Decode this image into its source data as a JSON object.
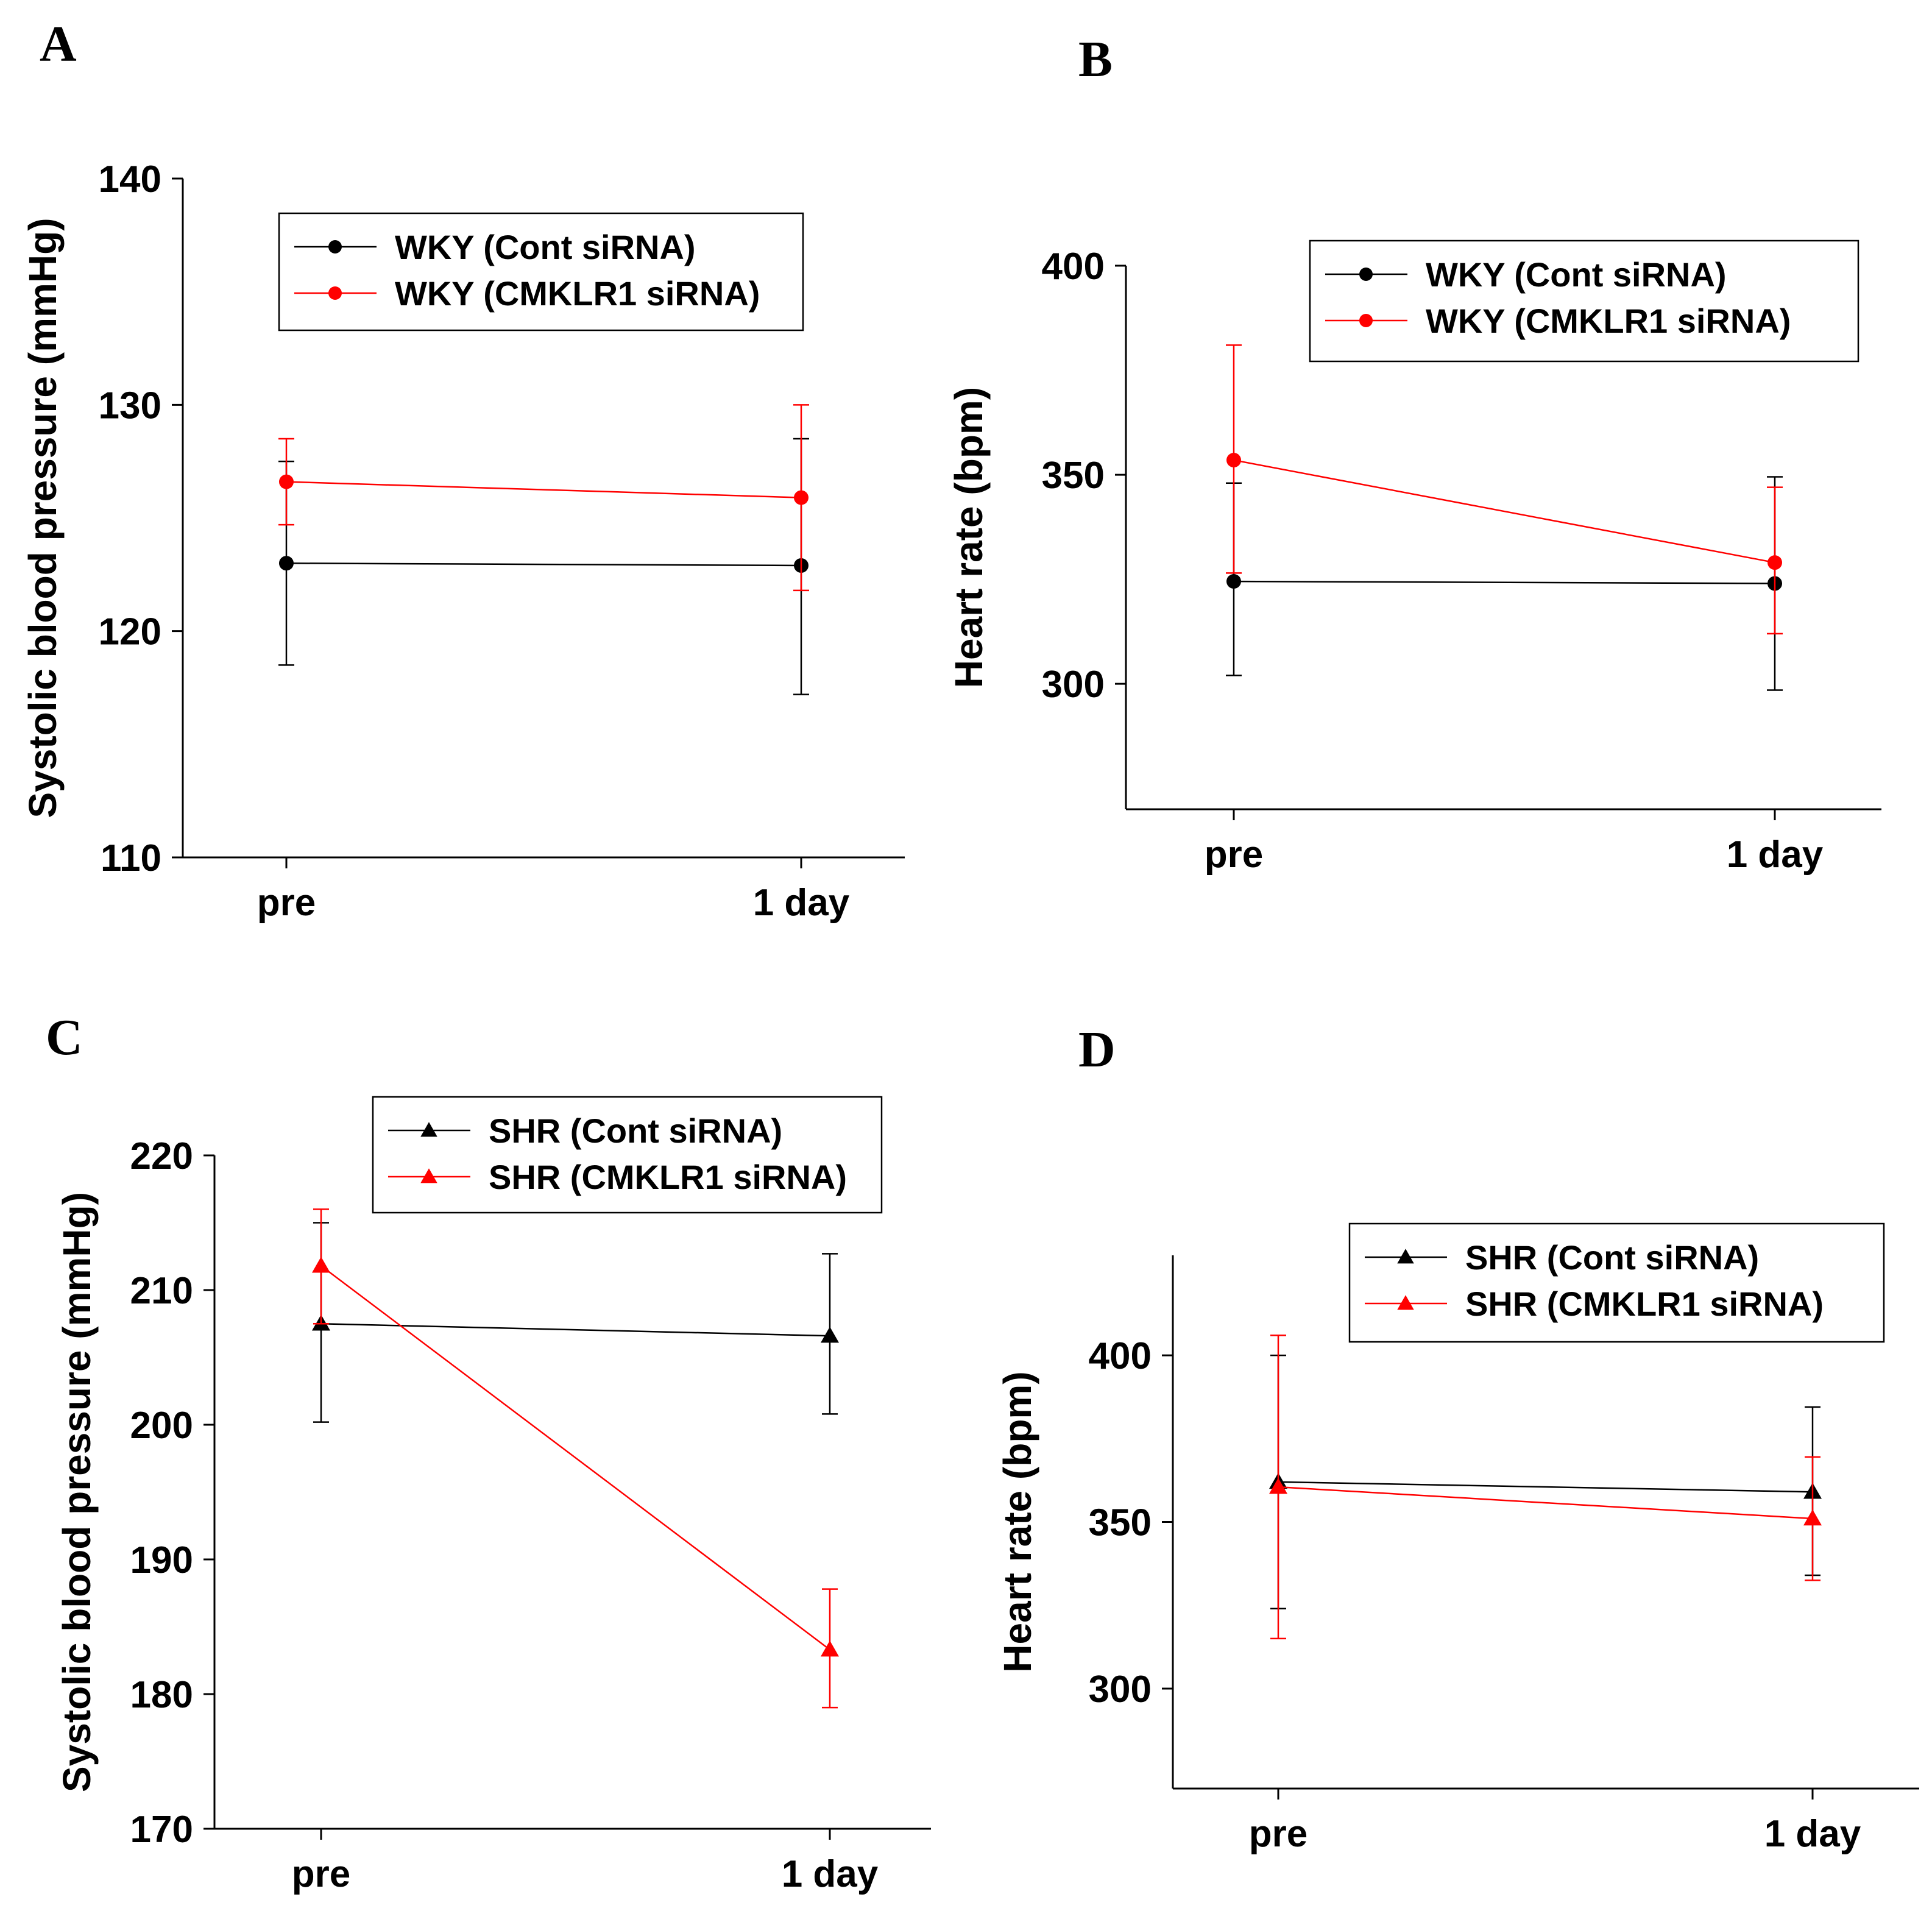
{
  "colors": {
    "axis": "#000000",
    "series_black": "#000000",
    "series_red": "#ff0000"
  },
  "chart_data": [
    {
      "id": "A",
      "panel_label": "A",
      "type": "line",
      "ylabel": "Systolic blood pressure (mmHg)",
      "xlabel": "",
      "categories": [
        "pre",
        "1 day"
      ],
      "ylim": [
        110,
        140
      ],
      "yticks": [
        110,
        120,
        130,
        140
      ],
      "legend_position": "top-center",
      "marker": "circle",
      "series": [
        {
          "name": "WKY (Cont siRNA)",
          "color": "#000000",
          "values": [
            123.0,
            122.9
          ],
          "err_low": [
            118.5,
            117.2
          ],
          "err_high": [
            127.5,
            128.5
          ]
        },
        {
          "name": "WKY (CMKLR1 siRNA)",
          "color": "#ff0000",
          "values": [
            126.6,
            125.9
          ],
          "err_low": [
            124.7,
            121.8
          ],
          "err_high": [
            128.5,
            130.0
          ]
        }
      ]
    },
    {
      "id": "B",
      "panel_label": "B",
      "type": "line",
      "ylabel": "Heart rate (bpm)",
      "xlabel": "",
      "categories": [
        "pre",
        "1 day"
      ],
      "ylim": [
        270,
        400
      ],
      "yticks": [
        300,
        350,
        400
      ],
      "legend_position": "top-right",
      "marker": "circle",
      "series": [
        {
          "name": "WKY (Cont siRNA)",
          "color": "#000000",
          "values": [
            324.5,
            324.0
          ],
          "err_low": [
            302.0,
            298.5
          ],
          "err_high": [
            348.0,
            349.5
          ]
        },
        {
          "name": "WKY (CMKLR1 siRNA)",
          "color": "#ff0000",
          "values": [
            353.5,
            329.0
          ],
          "err_low": [
            326.5,
            312.0
          ],
          "err_high": [
            381.0,
            347.0
          ]
        }
      ]
    },
    {
      "id": "C",
      "panel_label": "C",
      "type": "line",
      "ylabel": "Systolic blood pressure (mmHg)",
      "xlabel": "",
      "categories": [
        "pre",
        "1 day"
      ],
      "ylim": [
        170,
        220
      ],
      "yticks": [
        170,
        180,
        190,
        200,
        210,
        220
      ],
      "legend_position": "top-right",
      "marker": "triangle",
      "series": [
        {
          "name": "SHR (Cont siRNA)",
          "color": "#000000",
          "values": [
            207.5,
            206.6
          ],
          "err_low": [
            200.2,
            200.8
          ],
          "err_high": [
            215.0,
            212.7
          ]
        },
        {
          "name": "SHR (CMKLR1 siRNA)",
          "color": "#ff0000",
          "values": [
            211.8,
            183.3
          ],
          "err_low": [
            207.5,
            179.0
          ],
          "err_high": [
            216.0,
            187.8
          ]
        }
      ]
    },
    {
      "id": "D",
      "panel_label": "D",
      "type": "line",
      "ylabel": "Heart rate (bpm)",
      "xlabel": "",
      "categories": [
        "pre",
        "1 day"
      ],
      "ylim": [
        270,
        430
      ],
      "yticks": [
        300,
        350,
        400
      ],
      "legend_position": "top-right",
      "marker": "triangle",
      "series": [
        {
          "name": "SHR (Cont siRNA)",
          "color": "#000000",
          "values": [
            362.0,
            359.0
          ],
          "err_low": [
            324.0,
            334.0
          ],
          "err_high": [
            400.0,
            384.5
          ]
        },
        {
          "name": "SHR (CMKLR1 siRNA)",
          "color": "#ff0000",
          "values": [
            360.5,
            351.0
          ],
          "err_low": [
            315.0,
            332.5
          ],
          "err_high": [
            406.0,
            369.5
          ]
        }
      ]
    }
  ]
}
